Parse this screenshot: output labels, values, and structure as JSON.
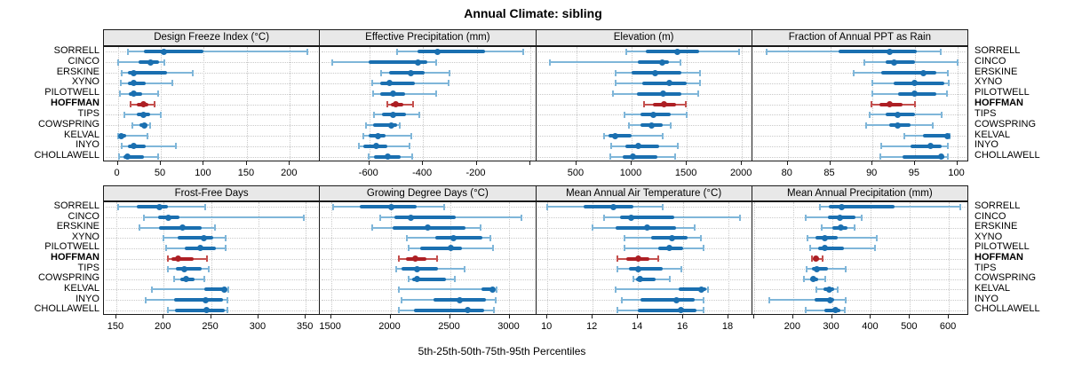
{
  "title": "Annual Climate: sibling",
  "caption": "5th-25th-50th-75th-95th Percentiles",
  "highlight_site": "HOFFMAN",
  "sites": [
    "SORRELL",
    "CINCO",
    "ERSKINE",
    "XYNO",
    "PILOTWELL",
    "HOFFMAN",
    "TIPS",
    "COWSPRING",
    "KELVAL",
    "INYO",
    "CHOLLAWELL"
  ],
  "colors": {
    "blue_dark": "#1a6fb0",
    "blue_light": "#7fb6d9",
    "red_dark": "#ad1f24",
    "red_light": "#c4504e",
    "strip_bg": "#e8e8e8",
    "grid": "#c9c9c9",
    "border": "#1a1a1a"
  },
  "chart_data": {
    "type": "interval-dotplot",
    "layout": "2x4 trellis, shared site rows, HOFFMAN highlighted in red",
    "percentiles": [
      "5th",
      "25th",
      "50th",
      "75th",
      "95th"
    ],
    "legend_position": "none",
    "grid": "dotted horizontal per row and vertical per tick",
    "panels": [
      {
        "title": "Design Freeze Index (°C)",
        "xlim": [
          -16,
          235
        ],
        "ticks": [
          0,
          50,
          100,
          150,
          200
        ],
        "extra_ticks": [],
        "values": [
          [
            12,
            30,
            54,
            100,
            220
          ],
          [
            0,
            24,
            38,
            48,
            54
          ],
          [
            5,
            12,
            18,
            57,
            87
          ],
          [
            4,
            12,
            19,
            33,
            63
          ],
          [
            3,
            13,
            19,
            28,
            47
          ],
          [
            15,
            22,
            30,
            36,
            43
          ],
          [
            8,
            22,
            30,
            38,
            50
          ],
          [
            17,
            25,
            31,
            35,
            38
          ],
          [
            0,
            2,
            4,
            10,
            34
          ],
          [
            5,
            12,
            18,
            33,
            68
          ],
          [
            2,
            7,
            11,
            30,
            47
          ]
        ]
      },
      {
        "title": "Effective Precipitation (mm)",
        "xlim": [
          -784,
          22
        ],
        "ticks": [
          -600,
          -400,
          -200
        ],
        "extra_ticks": [
          0
        ],
        "values": [
          [
            -497,
            -420,
            -345,
            -170,
            -27
          ],
          [
            -739,
            -603,
            -420,
            -385,
            -350
          ],
          [
            -555,
            -528,
            -444,
            -394,
            -300
          ],
          [
            -589,
            -560,
            -524,
            -430,
            -303
          ],
          [
            -585,
            -558,
            -513,
            -466,
            -352
          ],
          [
            -533,
            -520,
            -503,
            -472,
            -437
          ],
          [
            -582,
            -554,
            -510,
            -464,
            -413
          ],
          [
            -613,
            -585,
            -518,
            -498,
            -488
          ],
          [
            -621,
            -604,
            -568,
            -538,
            -443
          ],
          [
            -638,
            -621,
            -576,
            -532,
            -449
          ],
          [
            -604,
            -582,
            -532,
            -482,
            -440
          ]
        ]
      },
      {
        "title": "Elevation (m)",
        "xlim": [
          134,
          2093
        ],
        "ticks": [
          500,
          1000,
          1500,
          2000
        ],
        "extra_ticks": [],
        "values": [
          [
            950,
            1125,
            1413,
            1610,
            1973
          ],
          [
            255,
            1057,
            1279,
            1340,
            1440
          ],
          [
            855,
            1000,
            1214,
            1450,
            1623
          ],
          [
            855,
            1100,
            1345,
            1500,
            1620
          ],
          [
            830,
            1050,
            1287,
            1450,
            1600
          ],
          [
            1110,
            1190,
            1295,
            1400,
            1489
          ],
          [
            936,
            1080,
            1200,
            1350,
            1502
          ],
          [
            977,
            1080,
            1178,
            1280,
            1354
          ],
          [
            748,
            790,
            847,
            1000,
            1278
          ],
          [
            815,
            940,
            1057,
            1250,
            1421
          ],
          [
            807,
            920,
            1009,
            1230,
            1394
          ]
        ]
      },
      {
        "title": "Fraction of Annual PPT as Rain",
        "xlim": [
          75.8,
          101.3
        ],
        "ticks": [
          80,
          85,
          90,
          95,
          100
        ],
        "extra_ticks": [],
        "values": [
          [
            77.5,
            86,
            92,
            95.2,
            98.1
          ],
          [
            89,
            91.5,
            92.5,
            95,
            100
          ],
          [
            87.8,
            91,
            96,
            97.5,
            98.9
          ],
          [
            90,
            92.5,
            95,
            98.5,
            99
          ],
          [
            90,
            93,
            95,
            97.5,
            98.8
          ],
          [
            89.9,
            90.8,
            92,
            93.5,
            95
          ],
          [
            89.7,
            91.5,
            93,
            95,
            98.2
          ],
          [
            89.2,
            92,
            93,
            94.5,
            97.1
          ],
          [
            93.8,
            96,
            98.8,
            98.9,
            99.1
          ],
          [
            91,
            94.5,
            96.8,
            98.2,
            98.9
          ],
          [
            90.9,
            93.5,
            98.1,
            98.5,
            98.9
          ]
        ]
      },
      {
        "title": "Frost-Free Days",
        "xlim": [
          137,
          365
        ],
        "ticks": [
          150,
          200,
          250,
          300,
          350
        ],
        "extra_ticks": [],
        "values": [
          [
            152,
            172,
            196,
            205,
            244
          ],
          [
            179,
            194,
            205,
            217,
            348
          ],
          [
            174,
            195,
            220,
            240,
            254
          ],
          [
            200,
            215,
            242,
            252,
            265
          ],
          [
            203,
            222,
            239,
            255,
            265
          ],
          [
            204,
            208,
            215,
            232,
            246
          ],
          [
            204,
            213,
            222,
            240,
            248
          ],
          [
            211,
            218,
            224,
            233,
            243
          ],
          [
            188,
            243,
            264,
            266,
            268
          ],
          [
            181,
            211,
            244,
            263,
            267
          ],
          [
            204,
            212,
            245,
            264,
            267
          ]
        ]
      },
      {
        "title": "Growing Degree Days (°C)",
        "xlim": [
          1408,
          3224
        ],
        "ticks": [
          1500,
          2000,
          2500,
          3000
        ],
        "extra_ticks": [],
        "values": [
          [
            1520,
            1740,
            2005,
            2220,
            2455
          ],
          [
            1917,
            2030,
            2175,
            2550,
            3100
          ],
          [
            1850,
            2020,
            2315,
            2630,
            2760
          ],
          [
            2140,
            2380,
            2527,
            2770,
            2840
          ],
          [
            2155,
            2250,
            2510,
            2600,
            2860
          ],
          [
            2072,
            2130,
            2212,
            2300,
            2390
          ],
          [
            2048,
            2095,
            2224,
            2400,
            2625
          ],
          [
            2155,
            2180,
            2224,
            2470,
            2540
          ],
          [
            2072,
            2765,
            2858,
            2880,
            2895
          ],
          [
            2093,
            2365,
            2585,
            2800,
            2885
          ],
          [
            2067,
            2200,
            2652,
            2790,
            2870
          ]
        ]
      },
      {
        "title": "Mean Annual Air Temperature (°C)",
        "xlim": [
          9.5,
          19.05
        ],
        "ticks": [
          10,
          12,
          14,
          16,
          18
        ],
        "extra_ticks": [],
        "values": [
          [
            10,
            11.6,
            12.9,
            13.8,
            15.1
          ],
          [
            12.5,
            13.2,
            13.7,
            15.6,
            18.5
          ],
          [
            12,
            13,
            14.4,
            15.7,
            16.5
          ],
          [
            13.4,
            14.6,
            15.5,
            16.2,
            16.8
          ],
          [
            13.4,
            14.9,
            15.4,
            16,
            16.9
          ],
          [
            13.1,
            13.5,
            14,
            14.5,
            14.9
          ],
          [
            13.1,
            13.6,
            14,
            15.1,
            15.9
          ],
          [
            13.8,
            13.9,
            14.1,
            14.8,
            15.4
          ],
          [
            13,
            15.8,
            16.8,
            17,
            17.1
          ],
          [
            13.3,
            14.1,
            15.7,
            16.5,
            16.9
          ],
          [
            13.1,
            14,
            15.9,
            16.6,
            16.9
          ]
        ]
      },
      {
        "title": "Mean Annual Precipitation (mm)",
        "xlim": [
          95,
          650
        ],
        "ticks": [
          200,
          300,
          400,
          500,
          600
        ],
        "extra_ticks": [
          100
        ],
        "values": [
          [
            270,
            291,
            325,
            460,
            630
          ],
          [
            232,
            290,
            320,
            360,
            376
          ],
          [
            274,
            300,
            323,
            340,
            358
          ],
          [
            238,
            257,
            282,
            314,
            416
          ],
          [
            245,
            265,
            282,
            330,
            410
          ],
          [
            249,
            253,
            258,
            266,
            276
          ],
          [
            234,
            248,
            261,
            290,
            336
          ],
          [
            228,
            244,
            253,
            265,
            283
          ],
          [
            259,
            278,
            293,
            305,
            315
          ],
          [
            140,
            255,
            296,
            306,
            335
          ],
          [
            233,
            280,
            310,
            322,
            333
          ]
        ]
      }
    ]
  }
}
